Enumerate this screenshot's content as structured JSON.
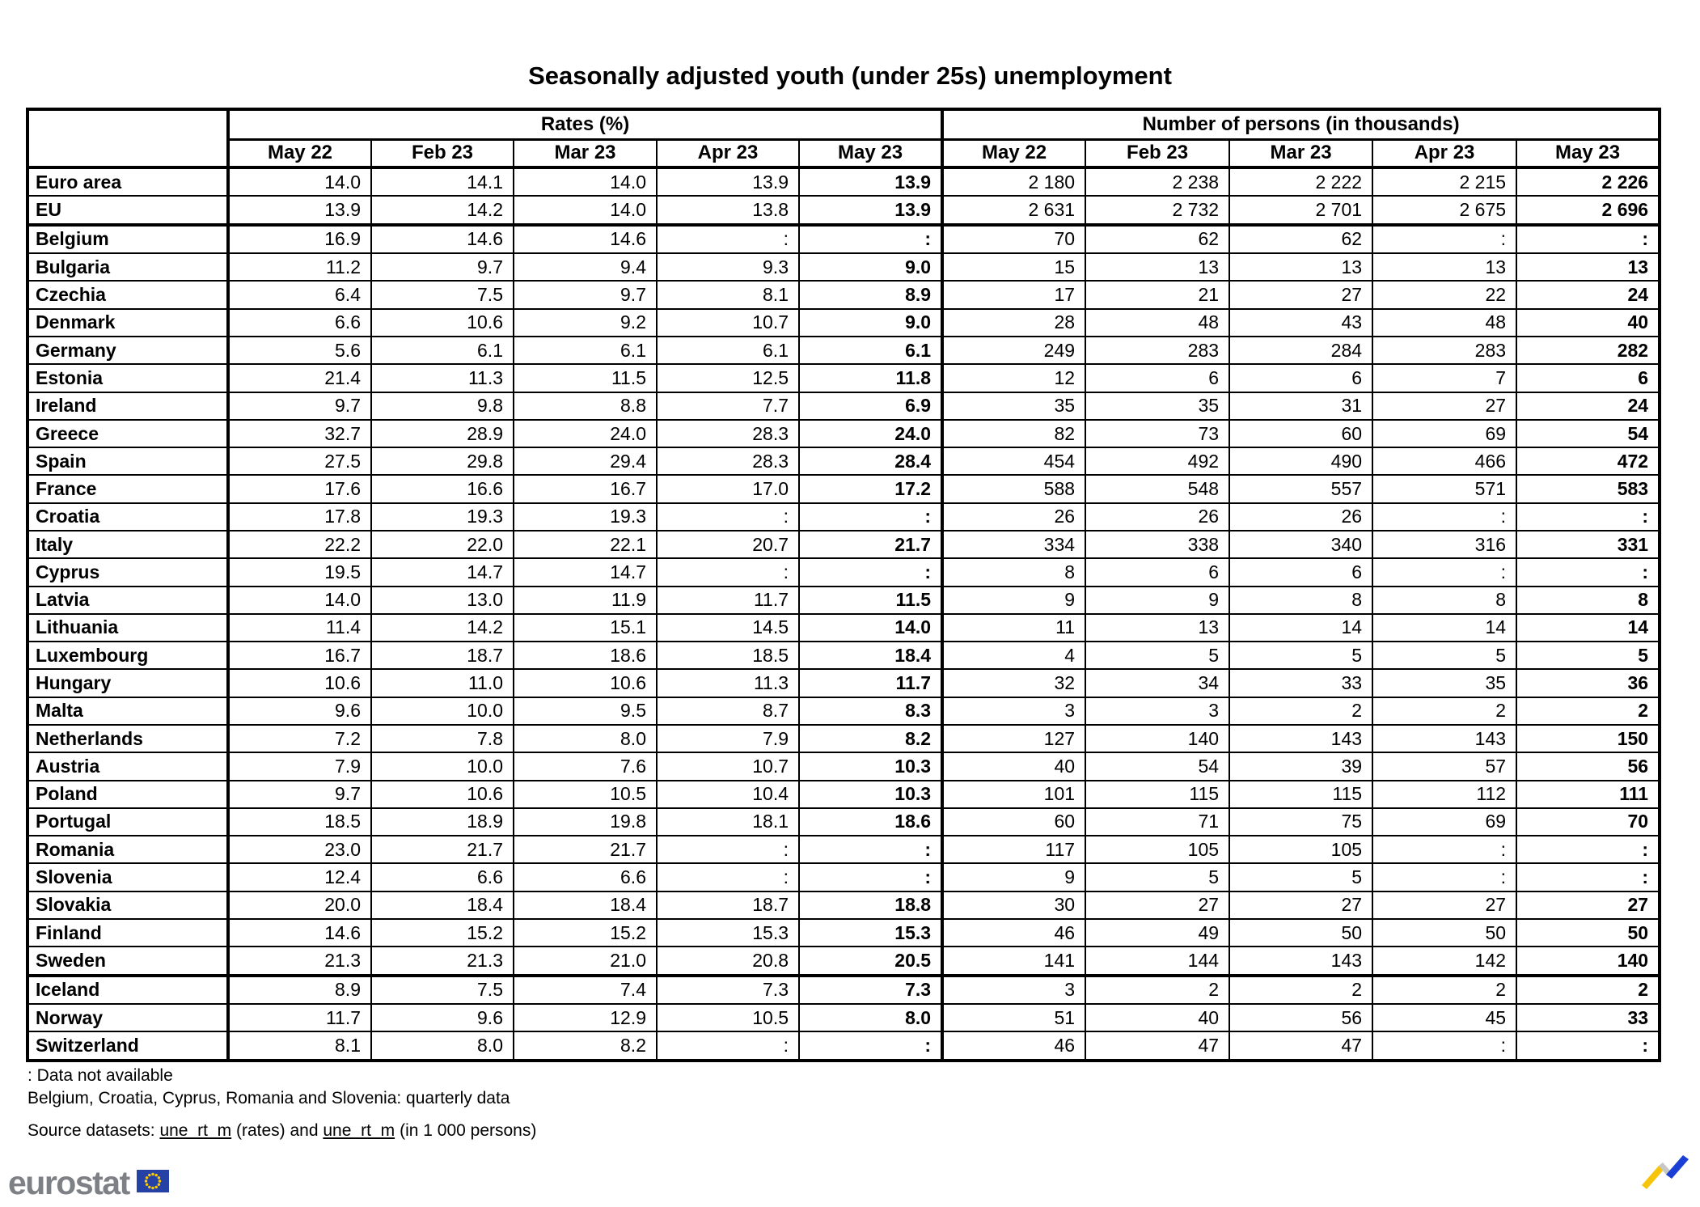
{
  "title": "Seasonally adjusted youth (under 25s) unemployment",
  "table": {
    "group_headers": [
      "Rates (%)",
      "Number of persons (in thousands)"
    ],
    "months": [
      "May 22",
      "Feb 23",
      "Mar 23",
      "Apr 23",
      "May 23"
    ],
    "rows": [
      {
        "country": "Euro area",
        "rates": [
          "14.0",
          "14.1",
          "14.0",
          "13.9",
          "13.9"
        ],
        "persons": [
          "2 180",
          "2 238",
          "2 222",
          "2 215",
          "2 226"
        ]
      },
      {
        "country": "EU",
        "rates": [
          "13.9",
          "14.2",
          "14.0",
          "13.8",
          "13.9"
        ],
        "persons": [
          "2 631",
          "2 732",
          "2 701",
          "2 675",
          "2 696"
        ]
      },
      {
        "country": "Belgium",
        "rates": [
          "16.9",
          "14.6",
          "14.6",
          ":",
          ":"
        ],
        "persons": [
          "70",
          "62",
          "62",
          ":",
          ":"
        ]
      },
      {
        "country": "Bulgaria",
        "rates": [
          "11.2",
          "9.7",
          "9.4",
          "9.3",
          "9.0"
        ],
        "persons": [
          "15",
          "13",
          "13",
          "13",
          "13"
        ]
      },
      {
        "country": "Czechia",
        "rates": [
          "6.4",
          "7.5",
          "9.7",
          "8.1",
          "8.9"
        ],
        "persons": [
          "17",
          "21",
          "27",
          "22",
          "24"
        ]
      },
      {
        "country": "Denmark",
        "rates": [
          "6.6",
          "10.6",
          "9.2",
          "10.7",
          "9.0"
        ],
        "persons": [
          "28",
          "48",
          "43",
          "48",
          "40"
        ]
      },
      {
        "country": "Germany",
        "rates": [
          "5.6",
          "6.1",
          "6.1",
          "6.1",
          "6.1"
        ],
        "persons": [
          "249",
          "283",
          "284",
          "283",
          "282"
        ]
      },
      {
        "country": "Estonia",
        "rates": [
          "21.4",
          "11.3",
          "11.5",
          "12.5",
          "11.8"
        ],
        "persons": [
          "12",
          "6",
          "6",
          "7",
          "6"
        ]
      },
      {
        "country": "Ireland",
        "rates": [
          "9.7",
          "9.8",
          "8.8",
          "7.7",
          "6.9"
        ],
        "persons": [
          "35",
          "35",
          "31",
          "27",
          "24"
        ]
      },
      {
        "country": "Greece",
        "rates": [
          "32.7",
          "28.9",
          "24.0",
          "28.3",
          "24.0"
        ],
        "persons": [
          "82",
          "73",
          "60",
          "69",
          "54"
        ]
      },
      {
        "country": "Spain",
        "rates": [
          "27.5",
          "29.8",
          "29.4",
          "28.3",
          "28.4"
        ],
        "persons": [
          "454",
          "492",
          "490",
          "466",
          "472"
        ]
      },
      {
        "country": "France",
        "rates": [
          "17.6",
          "16.6",
          "16.7",
          "17.0",
          "17.2"
        ],
        "persons": [
          "588",
          "548",
          "557",
          "571",
          "583"
        ]
      },
      {
        "country": "Croatia",
        "rates": [
          "17.8",
          "19.3",
          "19.3",
          ":",
          ":"
        ],
        "persons": [
          "26",
          "26",
          "26",
          ":",
          ":"
        ]
      },
      {
        "country": "Italy",
        "rates": [
          "22.2",
          "22.0",
          "22.1",
          "20.7",
          "21.7"
        ],
        "persons": [
          "334",
          "338",
          "340",
          "316",
          "331"
        ]
      },
      {
        "country": "Cyprus",
        "rates": [
          "19.5",
          "14.7",
          "14.7",
          ":",
          ":"
        ],
        "persons": [
          "8",
          "6",
          "6",
          ":",
          ":"
        ]
      },
      {
        "country": "Latvia",
        "rates": [
          "14.0",
          "13.0",
          "11.9",
          "11.7",
          "11.5"
        ],
        "persons": [
          "9",
          "9",
          "8",
          "8",
          "8"
        ]
      },
      {
        "country": "Lithuania",
        "rates": [
          "11.4",
          "14.2",
          "15.1",
          "14.5",
          "14.0"
        ],
        "persons": [
          "11",
          "13",
          "14",
          "14",
          "14"
        ]
      },
      {
        "country": "Luxembourg",
        "rates": [
          "16.7",
          "18.7",
          "18.6",
          "18.5",
          "18.4"
        ],
        "persons": [
          "4",
          "5",
          "5",
          "5",
          "5"
        ]
      },
      {
        "country": "Hungary",
        "rates": [
          "10.6",
          "11.0",
          "10.6",
          "11.3",
          "11.7"
        ],
        "persons": [
          "32",
          "34",
          "33",
          "35",
          "36"
        ]
      },
      {
        "country": "Malta",
        "rates": [
          "9.6",
          "10.0",
          "9.5",
          "8.7",
          "8.3"
        ],
        "persons": [
          "3",
          "3",
          "2",
          "2",
          "2"
        ]
      },
      {
        "country": "Netherlands",
        "rates": [
          "7.2",
          "7.8",
          "8.0",
          "7.9",
          "8.2"
        ],
        "persons": [
          "127",
          "140",
          "143",
          "143",
          "150"
        ]
      },
      {
        "country": "Austria",
        "rates": [
          "7.9",
          "10.0",
          "7.6",
          "10.7",
          "10.3"
        ],
        "persons": [
          "40",
          "54",
          "39",
          "57",
          "56"
        ]
      },
      {
        "country": "Poland",
        "rates": [
          "9.7",
          "10.6",
          "10.5",
          "10.4",
          "10.3"
        ],
        "persons": [
          "101",
          "115",
          "115",
          "112",
          "111"
        ]
      },
      {
        "country": "Portugal",
        "rates": [
          "18.5",
          "18.9",
          "19.8",
          "18.1",
          "18.6"
        ],
        "persons": [
          "60",
          "71",
          "75",
          "69",
          "70"
        ]
      },
      {
        "country": "Romania",
        "rates": [
          "23.0",
          "21.7",
          "21.7",
          ":",
          ":"
        ],
        "persons": [
          "117",
          "105",
          "105",
          ":",
          ":"
        ]
      },
      {
        "country": "Slovenia",
        "rates": [
          "12.4",
          "6.6",
          "6.6",
          ":",
          ":"
        ],
        "persons": [
          "9",
          "5",
          "5",
          ":",
          ":"
        ]
      },
      {
        "country": "Slovakia",
        "rates": [
          "20.0",
          "18.4",
          "18.4",
          "18.7",
          "18.8"
        ],
        "persons": [
          "30",
          "27",
          "27",
          "27",
          "27"
        ]
      },
      {
        "country": "Finland",
        "rates": [
          "14.6",
          "15.2",
          "15.2",
          "15.3",
          "15.3"
        ],
        "persons": [
          "46",
          "49",
          "50",
          "50",
          "50"
        ]
      },
      {
        "country": "Sweden",
        "rates": [
          "21.3",
          "21.3",
          "21.0",
          "20.8",
          "20.5"
        ],
        "persons": [
          "141",
          "144",
          "143",
          "142",
          "140"
        ]
      },
      {
        "country": "Iceland",
        "rates": [
          "8.9",
          "7.5",
          "7.4",
          "7.3",
          "7.3"
        ],
        "persons": [
          "3",
          "2",
          "2",
          "2",
          "2"
        ]
      },
      {
        "country": "Norway",
        "rates": [
          "11.7",
          "9.6",
          "12.9",
          "10.5",
          "8.0"
        ],
        "persons": [
          "51",
          "40",
          "56",
          "45",
          "33"
        ]
      },
      {
        "country": "Switzerland",
        "rates": [
          "8.1",
          "8.0",
          "8.2",
          ":",
          ":"
        ],
        "persons": [
          "46",
          "47",
          "47",
          ":",
          ":"
        ]
      }
    ]
  },
  "footnotes": {
    "not_available": ": Data not available",
    "quarterly": "Belgium, Croatia, Cyprus, Romania and Slovenia: quarterly data"
  },
  "source": {
    "label": "Source datasets: ",
    "link_rates": "une_rt_m",
    "between": " (rates) and ",
    "link_persons": "une_rt_m",
    "suffix": "(in 1 000 persons)"
  },
  "brand": {
    "name": "eurostat"
  },
  "icons": {
    "eu_flag": "eu-flag-icon",
    "trend": "trend-arrow-icon"
  }
}
